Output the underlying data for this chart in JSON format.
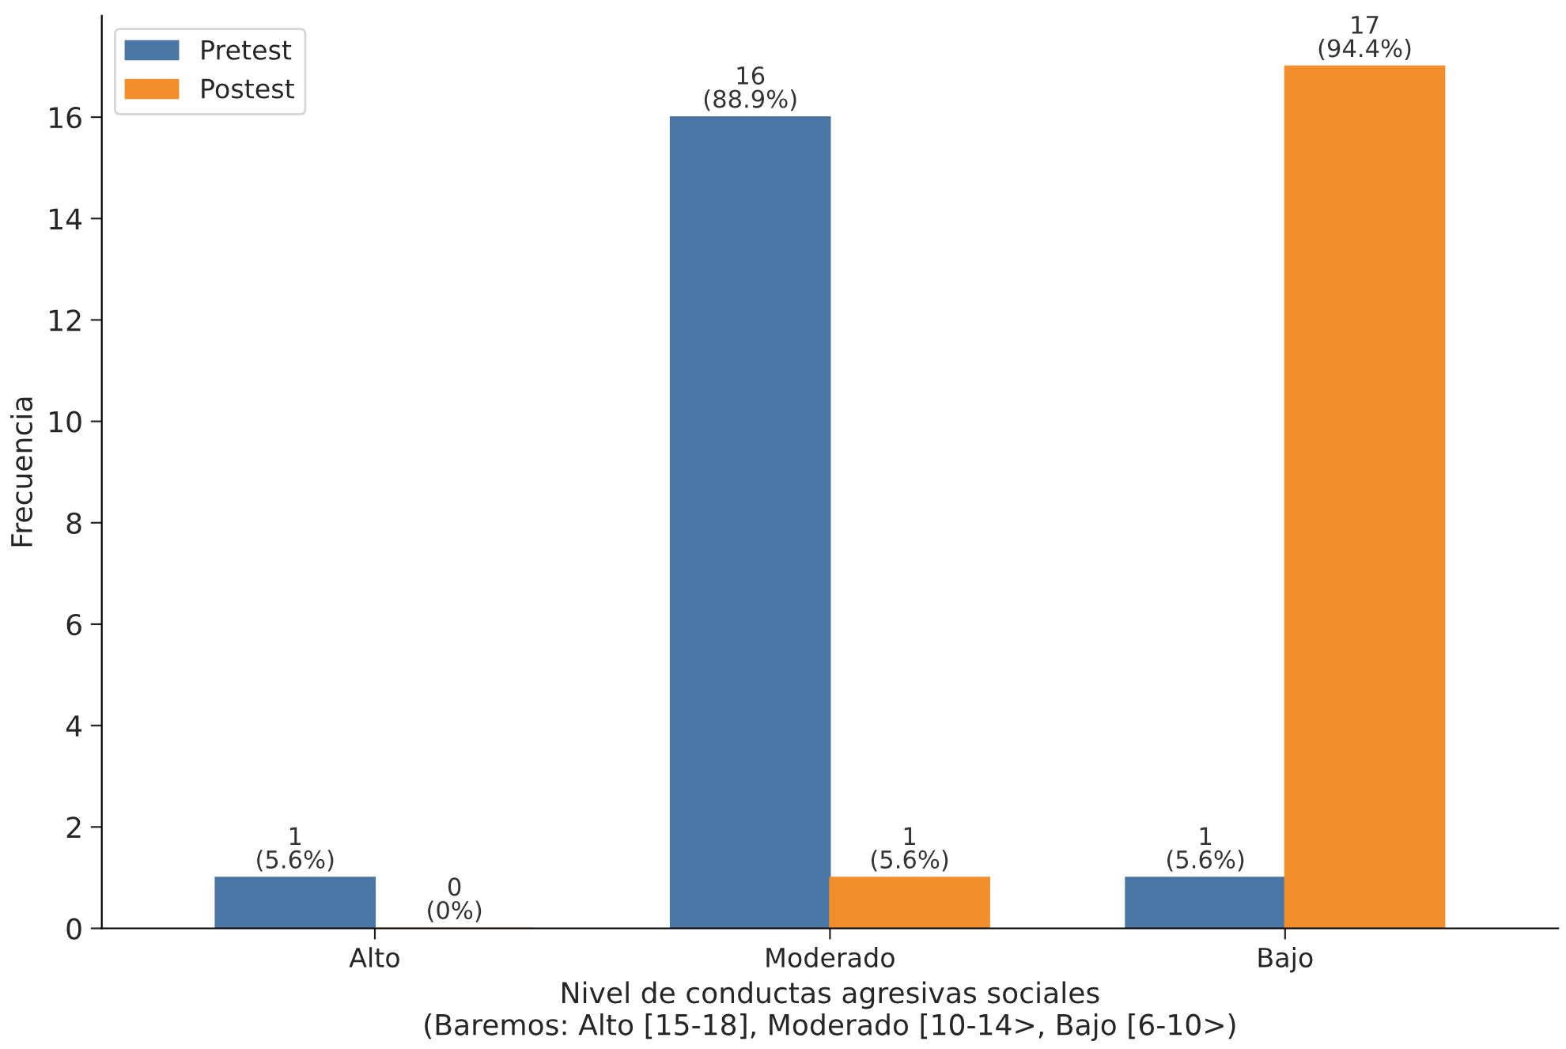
{
  "chart_data": {
    "type": "bar",
    "xlabel": "Nivel de conductas agresivas sociales\n(Baremos: Alto [15-18], Moderado [10-14>, Bajo [6-10>)",
    "ylabel": "Frecuencia",
    "categories": [
      "Alto",
      "Moderado",
      "Bajo"
    ],
    "series": [
      {
        "name": "Pretest",
        "color": "#4a76a6",
        "values": [
          1,
          16,
          1
        ],
        "value_labels": [
          "1\n(5.6%)",
          "16\n(88.9%)",
          "1\n(5.6%)"
        ]
      },
      {
        "name": "Postest",
        "color": "#f28e2b",
        "values": [
          0,
          1,
          17
        ],
        "value_labels": [
          "0\n(0%)",
          "1\n(5.6%)",
          "17\n(94.4%)"
        ]
      }
    ],
    "ylim": [
      0,
      18
    ],
    "yticks": [
      0,
      2,
      4,
      6,
      8,
      10,
      12,
      14,
      16
    ],
    "legend": "top left",
    "grid": false
  }
}
